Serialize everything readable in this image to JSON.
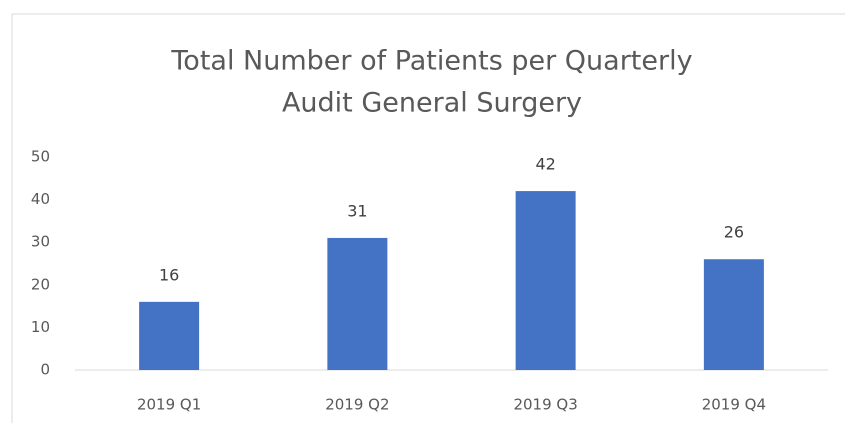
{
  "chart_data": {
    "type": "bar",
    "title": [
      "Total Number of Patients per Quarterly",
      "Audit General Surgery"
    ],
    "categories": [
      "2019 Q1",
      "2019 Q2",
      "2019 Q3",
      "2019 Q4"
    ],
    "values": [
      16,
      31,
      42,
      26
    ],
    "color": "#4472c4",
    "ylim": [
      0,
      50
    ],
    "yticks": [
      0,
      10,
      20,
      30,
      40,
      50
    ],
    "grid": false,
    "data_labels": true
  }
}
